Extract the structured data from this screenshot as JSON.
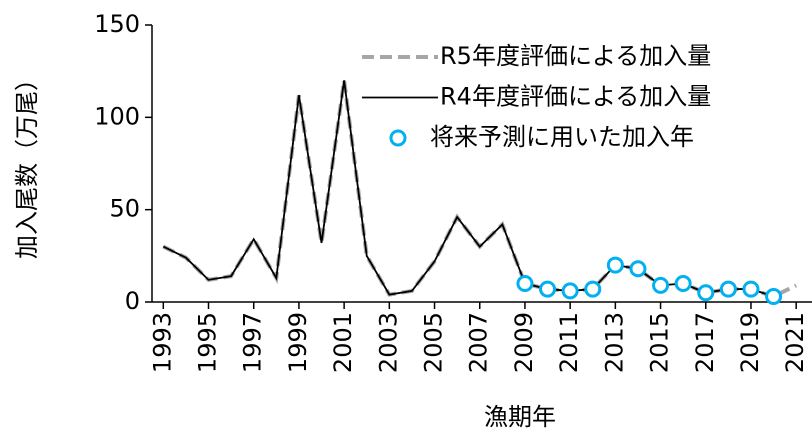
{
  "chart_data": {
    "type": "line",
    "xlabel": "漁期年",
    "ylabel": "加入尾数（万尾）",
    "x": [
      1993,
      1994,
      1995,
      1996,
      1997,
      1998,
      1999,
      2000,
      2001,
      2002,
      2003,
      2004,
      2005,
      2006,
      2007,
      2008,
      2009,
      2010,
      2011,
      2012,
      2013,
      2014,
      2015,
      2016,
      2017,
      2018,
      2019,
      2020,
      2021
    ],
    "series": [
      {
        "name": "R5年度評価による加入量",
        "color": "#a6a6a6",
        "line_style": "dashed",
        "marker": "none",
        "values": [
          30,
          24,
          12,
          14,
          34,
          13,
          112,
          32,
          120,
          25,
          4,
          6,
          22,
          46,
          30,
          42,
          10,
          7,
          6,
          7,
          20,
          18,
          9,
          10,
          5,
          7,
          7,
          3,
          9
        ]
      },
      {
        "name": "R4年度評価による加入量",
        "color": "#000000",
        "line_style": "solid",
        "marker": "none",
        "values": [
          30,
          24,
          12,
          14,
          34,
          13,
          112,
          32,
          120,
          25,
          4,
          6,
          22,
          46,
          30,
          42,
          10,
          7,
          6,
          7,
          20,
          18,
          9,
          10,
          5,
          7,
          7,
          3,
          null
        ]
      },
      {
        "name": "将来予測に用いた加入年",
        "color": "#00b0f0",
        "line_style": "none",
        "marker": "circle",
        "values": [
          null,
          null,
          null,
          null,
          null,
          null,
          null,
          null,
          null,
          null,
          null,
          null,
          null,
          null,
          null,
          null,
          10,
          7,
          6,
          7,
          20,
          18,
          9,
          10,
          5,
          7,
          7,
          3,
          null
        ]
      }
    ],
    "xlim": [
      1992.5,
      2021.7
    ],
    "xticks": [
      1993,
      1995,
      1997,
      1999,
      2001,
      2003,
      2005,
      2007,
      2009,
      2011,
      2013,
      2015,
      2017,
      2019,
      2021
    ],
    "ylim": [
      0,
      150
    ],
    "yticks": [
      0,
      50,
      100,
      150
    ],
    "grid": false,
    "legend": "upper right"
  }
}
